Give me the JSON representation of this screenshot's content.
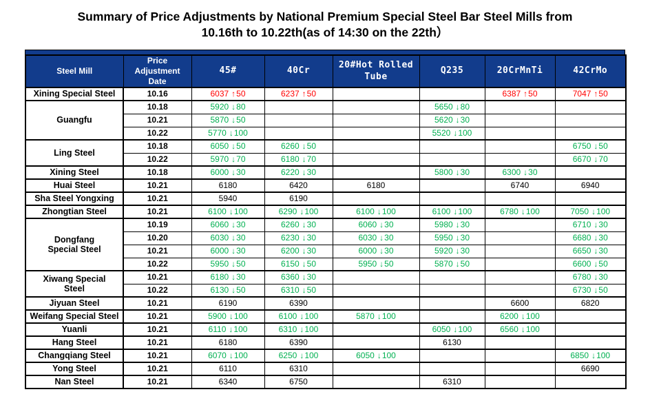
{
  "title": {
    "line1": "Summary of Price Adjustments by National Premium Special Steel Bar Steel Mills from",
    "line2": "10.16th to 10.22th(as of 14:30 on the 22th）"
  },
  "colors": {
    "header_bg": "#123C8C",
    "up": "#FF0000",
    "down": "#00B050",
    "flat_text": "#000000",
    "header_text": "#FFFFFF"
  },
  "table": {
    "arrow_up": "↑",
    "arrow_down": "↓",
    "columns": [
      {
        "key": "mill",
        "label": "Steel Mill"
      },
      {
        "key": "date",
        "label": "Price Adjustment Date"
      },
      {
        "key": "c45",
        "label": "45#"
      },
      {
        "key": "c40cr",
        "label": "40Cr"
      },
      {
        "key": "tube",
        "label": "20#Hot Rolled Tube"
      },
      {
        "key": "q235",
        "label": "Q235"
      },
      {
        "key": "crmnti",
        "label": "20CrMnTi"
      },
      {
        "key": "crmo",
        "label": "42CrMo"
      }
    ],
    "groups": [
      {
        "mill": "Xining Special Steel",
        "rows": [
          {
            "date": "10.16",
            "values": [
              {
                "p": 6037,
                "c": 50,
                "d": "up"
              },
              {
                "p": 6237,
                "c": 50,
                "d": "up"
              },
              null,
              null,
              {
                "p": 6387,
                "c": 50,
                "d": "up"
              },
              {
                "p": 7047,
                "c": 50,
                "d": "up"
              }
            ]
          }
        ]
      },
      {
        "mill": "Guangfu",
        "rows": [
          {
            "date": "10.18",
            "values": [
              {
                "p": 5920,
                "c": 80,
                "d": "down"
              },
              null,
              null,
              {
                "p": 5650,
                "c": 80,
                "d": "down"
              },
              null,
              null
            ]
          },
          {
            "date": "10.21",
            "values": [
              {
                "p": 5870,
                "c": 50,
                "d": "down"
              },
              null,
              null,
              {
                "p": 5620,
                "c": 30,
                "d": "down"
              },
              null,
              null
            ]
          },
          {
            "date": "10.22",
            "values": [
              {
                "p": 5770,
                "c": 100,
                "d": "down"
              },
              null,
              null,
              {
                "p": 5520,
                "c": 100,
                "d": "down"
              },
              null,
              null
            ]
          }
        ]
      },
      {
        "mill": "Ling Steel",
        "rows": [
          {
            "date": "10.18",
            "values": [
              {
                "p": 6050,
                "c": 50,
                "d": "down"
              },
              {
                "p": 6260,
                "c": 50,
                "d": "down"
              },
              null,
              null,
              null,
              {
                "p": 6750,
                "c": 50,
                "d": "down"
              }
            ]
          },
          {
            "date": "10.22",
            "values": [
              {
                "p": 5970,
                "c": 70,
                "d": "down"
              },
              {
                "p": 6180,
                "c": 70,
                "d": "down"
              },
              null,
              null,
              null,
              {
                "p": 6670,
                "c": 70,
                "d": "down"
              }
            ]
          }
        ]
      },
      {
        "mill": "Xining Steel",
        "rows": [
          {
            "date": "10.18",
            "values": [
              {
                "p": 6000,
                "c": 30,
                "d": "down"
              },
              {
                "p": 6220,
                "c": 30,
                "d": "down"
              },
              null,
              {
                "p": 5800,
                "c": 30,
                "d": "down"
              },
              {
                "p": 6300,
                "c": 30,
                "d": "down"
              },
              null
            ]
          }
        ]
      },
      {
        "mill": "Huai Steel",
        "rows": [
          {
            "date": "10.21",
            "values": [
              {
                "p": 6180,
                "d": "flat"
              },
              {
                "p": 6420,
                "d": "flat"
              },
              {
                "p": 6180,
                "d": "flat"
              },
              null,
              {
                "p": 6740,
                "d": "flat"
              },
              {
                "p": 6940,
                "d": "flat"
              }
            ]
          }
        ]
      },
      {
        "mill": "Sha Steel Yongxing",
        "rows": [
          {
            "date": "10.21",
            "values": [
              {
                "p": 5940,
                "d": "flat"
              },
              {
                "p": 6190,
                "d": "flat"
              },
              null,
              null,
              null,
              null
            ]
          }
        ]
      },
      {
        "mill": "Zhongtian Steel",
        "rows": [
          {
            "date": "10.21",
            "values": [
              {
                "p": 6100,
                "c": 100,
                "d": "down"
              },
              {
                "p": 6290,
                "c": 100,
                "d": "down"
              },
              {
                "p": 6100,
                "c": 100,
                "d": "down"
              },
              {
                "p": 6100,
                "c": 100,
                "d": "down"
              },
              {
                "p": 6780,
                "c": 100,
                "d": "down"
              },
              {
                "p": 7050,
                "c": 100,
                "d": "down"
              }
            ]
          }
        ]
      },
      {
        "mill": "Dongfang\nSpecial Steel",
        "rows": [
          {
            "date": "10.19",
            "values": [
              {
                "p": 6060,
                "c": 30,
                "d": "down"
              },
              {
                "p": 6260,
                "c": 30,
                "d": "down"
              },
              {
                "p": 6060,
                "c": 30,
                "d": "down"
              },
              {
                "p": 5980,
                "c": 30,
                "d": "down"
              },
              null,
              {
                "p": 6710,
                "c": 30,
                "d": "down"
              }
            ]
          },
          {
            "date": "10.20",
            "values": [
              {
                "p": 6030,
                "c": 30,
                "d": "down"
              },
              {
                "p": 6230,
                "c": 30,
                "d": "down"
              },
              {
                "p": 6030,
                "c": 30,
                "d": "down"
              },
              {
                "p": 5950,
                "c": 30,
                "d": "down"
              },
              null,
              {
                "p": 6680,
                "c": 30,
                "d": "down"
              }
            ]
          },
          {
            "date": "10.21",
            "values": [
              {
                "p": 6000,
                "c": 30,
                "d": "down"
              },
              {
                "p": 6200,
                "c": 30,
                "d": "down"
              },
              {
                "p": 6000,
                "c": 30,
                "d": "down"
              },
              {
                "p": 5920,
                "c": 30,
                "d": "down"
              },
              null,
              {
                "p": 6650,
                "c": 30,
                "d": "down"
              }
            ]
          },
          {
            "date": "10.22",
            "values": [
              {
                "p": 5950,
                "c": 50,
                "d": "down"
              },
              {
                "p": 6150,
                "c": 50,
                "d": "down"
              },
              {
                "p": 5950,
                "c": 50,
                "d": "down"
              },
              {
                "p": 5870,
                "c": 50,
                "d": "down"
              },
              null,
              {
                "p": 6600,
                "c": 50,
                "d": "down"
              }
            ]
          }
        ]
      },
      {
        "mill": "Xiwang Special\nSteel",
        "rows": [
          {
            "date": "10.21",
            "values": [
              {
                "p": 6180,
                "c": 30,
                "d": "down"
              },
              {
                "p": 6360,
                "c": 30,
                "d": "down"
              },
              null,
              null,
              null,
              {
                "p": 6780,
                "c": 30,
                "d": "down"
              }
            ]
          },
          {
            "date": "10.22",
            "values": [
              {
                "p": 6130,
                "c": 50,
                "d": "down"
              },
              {
                "p": 6310,
                "c": 50,
                "d": "down"
              },
              null,
              null,
              null,
              {
                "p": 6730,
                "c": 50,
                "d": "down"
              }
            ]
          }
        ]
      },
      {
        "mill": "Jiyuan Steel",
        "rows": [
          {
            "date": "10.21",
            "values": [
              {
                "p": 6190,
                "d": "flat"
              },
              {
                "p": 6390,
                "d": "flat"
              },
              null,
              null,
              {
                "p": 6600,
                "d": "flat"
              },
              {
                "p": 6820,
                "d": "flat"
              }
            ]
          }
        ]
      },
      {
        "mill": "Weifang Special Steel",
        "rows": [
          {
            "date": "10.21",
            "values": [
              {
                "p": 5900,
                "c": 100,
                "d": "down"
              },
              {
                "p": 6100,
                "c": 100,
                "d": "down"
              },
              {
                "p": 5870,
                "c": 100,
                "d": "down"
              },
              null,
              {
                "p": 6200,
                "c": 100,
                "d": "down"
              },
              null
            ]
          }
        ]
      },
      {
        "mill": "Yuanli",
        "rows": [
          {
            "date": "10.21",
            "values": [
              {
                "p": 6110,
                "c": 100,
                "d": "down"
              },
              {
                "p": 6310,
                "c": 100,
                "d": "down"
              },
              null,
              {
                "p": 6050,
                "c": 100,
                "d": "down"
              },
              {
                "p": 6560,
                "c": 100,
                "d": "down"
              },
              null
            ]
          }
        ]
      },
      {
        "mill": "Hang Steel",
        "rows": [
          {
            "date": "10.21",
            "values": [
              {
                "p": 6180,
                "d": "flat"
              },
              {
                "p": 6390,
                "d": "flat"
              },
              null,
              {
                "p": 6130,
                "d": "flat"
              },
              null,
              null
            ]
          }
        ]
      },
      {
        "mill": "Changqiang Steel",
        "rows": [
          {
            "date": "10.21",
            "values": [
              {
                "p": 6070,
                "c": 100,
                "d": "down"
              },
              {
                "p": 6250,
                "c": 100,
                "d": "down"
              },
              {
                "p": 6050,
                "c": 100,
                "d": "down"
              },
              null,
              null,
              {
                "p": 6850,
                "c": 100,
                "d": "down"
              }
            ]
          }
        ]
      },
      {
        "mill": "Yong Steel",
        "rows": [
          {
            "date": "10.21",
            "values": [
              {
                "p": 6110,
                "d": "flat"
              },
              {
                "p": 6310,
                "d": "flat"
              },
              null,
              null,
              null,
              {
                "p": 6690,
                "d": "flat"
              }
            ]
          }
        ]
      },
      {
        "mill": "Nan Steel",
        "rows": [
          {
            "date": "10.21",
            "values": [
              {
                "p": 6340,
                "d": "flat"
              },
              {
                "p": 6750,
                "d": "flat"
              },
              null,
              {
                "p": 6310,
                "d": "flat"
              },
              null,
              null
            ]
          }
        ]
      }
    ]
  }
}
